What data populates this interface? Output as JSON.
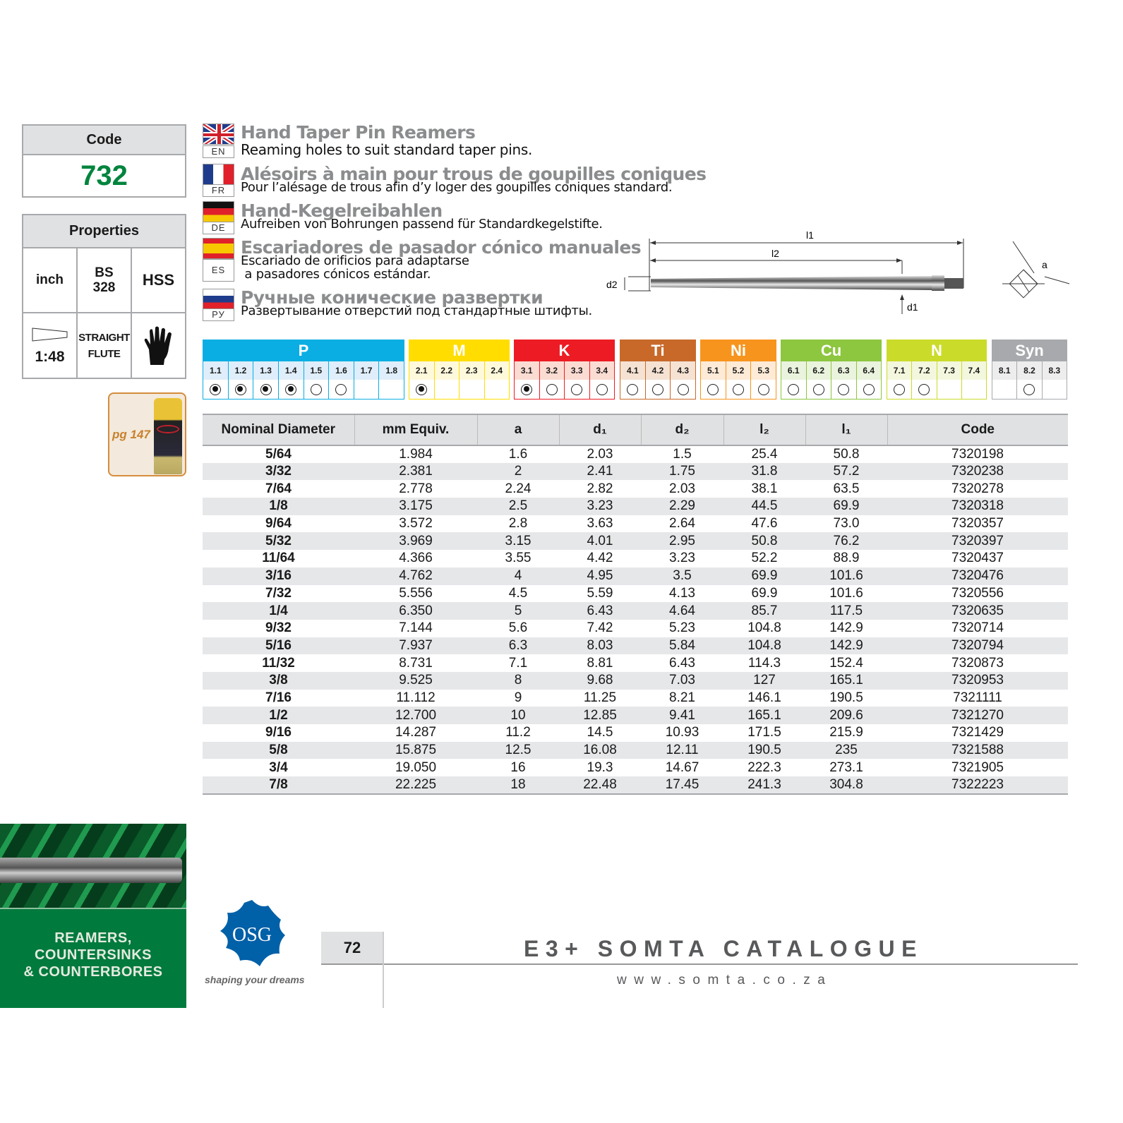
{
  "code_box": {
    "label": "Code",
    "value": "732"
  },
  "properties": {
    "label": "Properties",
    "units": "inch",
    "standard_line1": "BS",
    "standard_line2": "328",
    "material": "HSS",
    "taper": "1:48",
    "flute_line1": "STRAIGHT",
    "flute_line2": "FLUTE",
    "operation_icon": "hand-icon"
  },
  "accessory": {
    "page_ref": "pg 147",
    "icon": "cutting-fluid-can"
  },
  "languages": [
    {
      "code": "EN",
      "title": "Hand Taper Pin Reamers",
      "subtitle": "Reaming holes to suit standard taper pins."
    },
    {
      "code": "FR",
      "title": "Alésoirs à main pour trous de goupilles coniques",
      "subtitle": "Pour l’alésage de trous afin d’y loger des goupilles coniques standard."
    },
    {
      "code": "DE",
      "title": "Hand-Kegelreibahlen",
      "subtitle": "Aufreiben von Bohrungen passend für Standardkegelstifte."
    },
    {
      "code": "ES",
      "title": "Escariadores de pasador cónico manuales",
      "subtitle": "Escariado de orificios para adaptarse",
      "subtitle2": " a pasadores cónicos estándar."
    },
    {
      "code": "РУ",
      "title": "Ручные конические развертки",
      "subtitle": "Развертывание отверстий под стандартные штифты."
    }
  ],
  "diagram": {
    "l1": "l1",
    "l2": "l2",
    "d1": "d1",
    "d2": "d2",
    "a": "a"
  },
  "materials": [
    {
      "name": "P",
      "color": "#0aaee3",
      "light": "#dfeefa",
      "text": "#fff",
      "subs": [
        "1.1",
        "1.2",
        "1.3",
        "1.4",
        "1.5",
        "1.6",
        "1.7",
        "1.8"
      ],
      "states": [
        "full",
        "full",
        "full",
        "full",
        "empty",
        "empty",
        "",
        ""
      ]
    },
    {
      "name": "M",
      "color": "#ffdd00",
      "light": "#fff9dc",
      "text": "#fff",
      "subs": [
        "2.1",
        "2.2",
        "2.3",
        "2.4"
      ],
      "states": [
        "full",
        "",
        "",
        ""
      ]
    },
    {
      "name": "K",
      "color": "#ed1c24",
      "light": "#fbdcd2",
      "text": "#fff",
      "subs": [
        "3.1",
        "3.2",
        "3.3",
        "3.4"
      ],
      "states": [
        "full",
        "empty",
        "empty",
        "empty"
      ]
    },
    {
      "name": "Ti",
      "color": "#c8692a",
      "light": "#f5e2d3",
      "text": "#fff",
      "subs": [
        "4.1",
        "4.2",
        "4.3"
      ],
      "states": [
        "empty",
        "empty",
        "empty"
      ]
    },
    {
      "name": "Ni",
      "color": "#f7941d",
      "light": "#fdebd7",
      "text": "#fff",
      "subs": [
        "5.1",
        "5.2",
        "5.3"
      ],
      "states": [
        "empty",
        "empty",
        "empty"
      ]
    },
    {
      "name": "Cu",
      "color": "#8dc63f",
      "light": "#eaf3dd",
      "text": "#fff",
      "subs": [
        "6.1",
        "6.2",
        "6.3",
        "6.4"
      ],
      "states": [
        "empty",
        "empty",
        "empty",
        "empty"
      ]
    },
    {
      "name": "N",
      "color": "#cbdb2a",
      "light": "#f3f7dd",
      "text": "#fff",
      "subs": [
        "7.1",
        "7.2",
        "7.3",
        "7.4"
      ],
      "states": [
        "empty",
        "empty",
        "",
        ""
      ]
    },
    {
      "name": "Syn",
      "color": "#a7a9ac",
      "light": "#ededed",
      "text": "#fff",
      "subs": [
        "8.1",
        "8.2",
        "8.3"
      ],
      "states": [
        "",
        "empty",
        ""
      ]
    }
  ],
  "table": {
    "headers": [
      "Nominal Diameter",
      "mm Equiv.",
      "a",
      "d₁",
      "d₂",
      "l₂",
      "l₁",
      "Code"
    ],
    "rows": [
      [
        "5/64",
        "1.984",
        "1.6",
        "2.03",
        "1.5",
        "25.4",
        "50.8",
        "7320198"
      ],
      [
        "3/32",
        "2.381",
        "2",
        "2.41",
        "1.75",
        "31.8",
        "57.2",
        "7320238"
      ],
      [
        "7/64",
        "2.778",
        "2.24",
        "2.82",
        "2.03",
        "38.1",
        "63.5",
        "7320278"
      ],
      [
        "1/8",
        "3.175",
        "2.5",
        "3.23",
        "2.29",
        "44.5",
        "69.9",
        "7320318"
      ],
      [
        "9/64",
        "3.572",
        "2.8",
        "3.63",
        "2.64",
        "47.6",
        "73.0",
        "7320357"
      ],
      [
        "5/32",
        "3.969",
        "3.15",
        "4.01",
        "2.95",
        "50.8",
        "76.2",
        "7320397"
      ],
      [
        "11/64",
        "4.366",
        "3.55",
        "4.42",
        "3.23",
        "52.2",
        "88.9",
        "7320437"
      ],
      [
        "3/16",
        "4.762",
        "4",
        "4.95",
        "3.5",
        "69.9",
        "101.6",
        "7320476"
      ],
      [
        "7/32",
        "5.556",
        "4.5",
        "5.59",
        "4.13",
        "69.9",
        "101.6",
        "7320556"
      ],
      [
        "1/4",
        "6.350",
        "5",
        "6.43",
        "4.64",
        "85.7",
        "117.5",
        "7320635"
      ],
      [
        "9/32",
        "7.144",
        "5.6",
        "7.42",
        "5.23",
        "104.8",
        "142.9",
        "7320714"
      ],
      [
        "5/16",
        "7.937",
        "6.3",
        "8.03",
        "5.84",
        "104.8",
        "142.9",
        "7320794"
      ],
      [
        "11/32",
        "8.731",
        "7.1",
        "8.81",
        "6.43",
        "114.3",
        "152.4",
        "7320873"
      ],
      [
        "3/8",
        "9.525",
        "8",
        "9.68",
        "7.03",
        "127",
        "165.1",
        "7320953"
      ],
      [
        "7/16",
        "11.112",
        "9",
        "11.25",
        "8.21",
        "146.1",
        "190.5",
        "7321111"
      ],
      [
        "1/2",
        "12.700",
        "10",
        "12.85",
        "9.41",
        "165.1",
        "209.6",
        "7321270"
      ],
      [
        "9/16",
        "14.287",
        "11.2",
        "14.5",
        "10.93",
        "171.5",
        "215.9",
        "7321429"
      ],
      [
        "5/8",
        "15.875",
        "12.5",
        "16.08",
        "12.11",
        "190.5",
        "235",
        "7321588"
      ],
      [
        "3/4",
        "19.050",
        "16",
        "19.3",
        "14.67",
        "222.3",
        "273.1",
        "7321905"
      ],
      [
        "7/8",
        "22.225",
        "18",
        "22.48",
        "17.45",
        "241.3",
        "304.8",
        "7322223"
      ]
    ]
  },
  "footer": {
    "section_line1": "REAMERS,",
    "section_line2": "COUNTERSINKS",
    "section_line3": "& COUNTERBORES",
    "logo_text": "OSG",
    "tagline": "shaping your dreams",
    "page_number": "72",
    "catalogue_title": "E3+ SOMTA CATALOGUE",
    "website": "www.somta.co.za",
    "green": "#007a3d"
  }
}
